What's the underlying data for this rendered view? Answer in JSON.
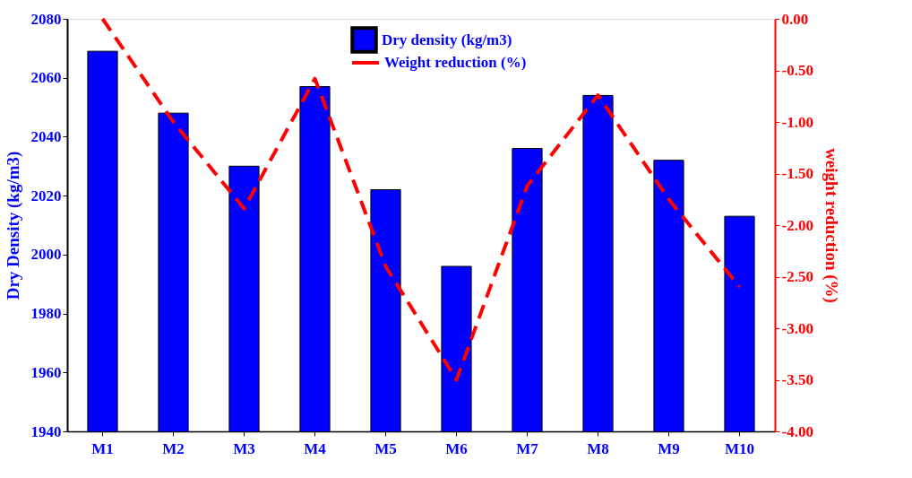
{
  "chart_data": {
    "type": "bar",
    "ylabel": "Dry Density (kg/m3)",
    "y2label": "weight reduction (%)",
    "categories": [
      "M1",
      "M2",
      "M3",
      "M4",
      "M5",
      "M6",
      "M7",
      "M8",
      "M9",
      "M10"
    ],
    "series": [
      {
        "name": "Dry density (kg/m3)",
        "color": "#0000ff",
        "values": [
          2069,
          2048,
          2030,
          2057,
          2022,
          1996,
          2036,
          2054,
          2032,
          2013
        ]
      },
      {
        "name": "Weight reduction (%)",
        "type": "line",
        "axis": "y2",
        "color": "#ff0000",
        "line_style": "dashed",
        "values": [
          0.0,
          -1.0,
          -1.84,
          -0.58,
          -2.4,
          -3.5,
          -1.62,
          -0.74,
          -1.75,
          -2.6
        ]
      }
    ],
    "ylim": [
      1940,
      2080
    ],
    "yticks": [
      1940,
      1960,
      1980,
      2000,
      2020,
      2040,
      2060,
      2080
    ],
    "y2lim": [
      -4.0,
      0.0
    ],
    "y2ticks": [
      {
        "value": -4.0,
        "label": "-4.00"
      },
      {
        "value": -3.5,
        "label": "-3.50"
      },
      {
        "value": -3.0,
        "label": "-3.00"
      },
      {
        "value": -2.5,
        "label": "-2.50"
      },
      {
        "value": -2.0,
        "label": "-2.00"
      },
      {
        "value": -1.5,
        "label": "-1.50"
      },
      {
        "value": -1.0,
        "label": "-1.00"
      },
      {
        "value": -0.5,
        "label": "-0.50"
      },
      {
        "value": 0.0,
        "label": "0.00"
      }
    ],
    "grid": false,
    "legend": "top",
    "marker": "none"
  }
}
